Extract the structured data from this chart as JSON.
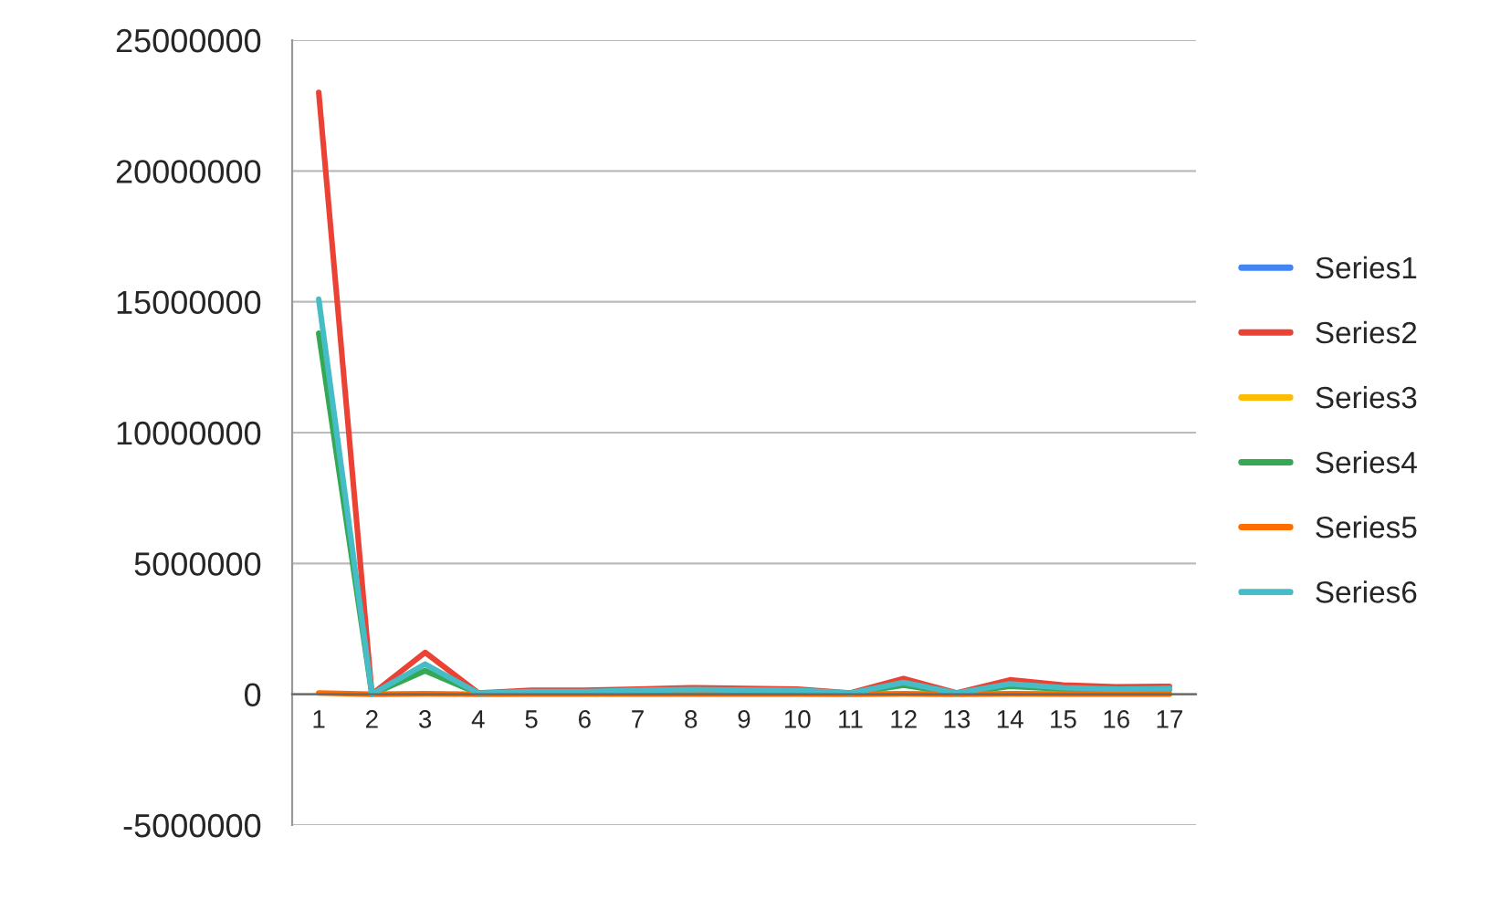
{
  "chart_data": {
    "type": "line",
    "categories": [
      "1",
      "2",
      "3",
      "4",
      "5",
      "6",
      "7",
      "8",
      "9",
      "10",
      "11",
      "12",
      "13",
      "14",
      "15",
      "16",
      "17"
    ],
    "series": [
      {
        "name": "Series1",
        "color": "#4285f4",
        "values": [
          null,
          null,
          null,
          null,
          null,
          null,
          null,
          null,
          null,
          null,
          null,
          null,
          null,
          null,
          null,
          null,
          null
        ]
      },
      {
        "name": "Series2",
        "color": "#ea4335",
        "values": [
          23000000,
          0,
          1600000,
          50000,
          150000,
          150000,
          200000,
          250000,
          220000,
          200000,
          50000,
          600000,
          50000,
          550000,
          350000,
          280000,
          300000
        ]
      },
      {
        "name": "Series3",
        "color": "#fbbc04",
        "values": [
          null,
          null,
          null,
          null,
          null,
          null,
          null,
          null,
          null,
          null,
          null,
          null,
          null,
          null,
          null,
          null,
          null
        ]
      },
      {
        "name": "Series4",
        "color": "#34a853",
        "values": [
          13800000,
          0,
          900000,
          30000,
          80000,
          80000,
          120000,
          150000,
          130000,
          120000,
          30000,
          350000,
          30000,
          300000,
          200000,
          160000,
          180000
        ]
      },
      {
        "name": "Series5",
        "color": "#ff6d01",
        "values": [
          50000,
          0,
          20000,
          0,
          10000,
          10000,
          10000,
          10000,
          10000,
          10000,
          0,
          20000,
          0,
          20000,
          10000,
          10000,
          10000
        ]
      },
      {
        "name": "Series6",
        "color": "#46bdc6",
        "values": [
          15100000,
          0,
          1150000,
          40000,
          100000,
          100000,
          150000,
          180000,
          160000,
          150000,
          40000,
          450000,
          40000,
          400000,
          250000,
          200000,
          220000
        ]
      }
    ],
    "ylim": [
      -5000000,
      25000000
    ],
    "yticks": [
      -5000000,
      0,
      5000000,
      10000000,
      15000000,
      20000000,
      25000000
    ],
    "grid": "y",
    "legend": "right",
    "line_style": "solid",
    "marker": "none"
  }
}
